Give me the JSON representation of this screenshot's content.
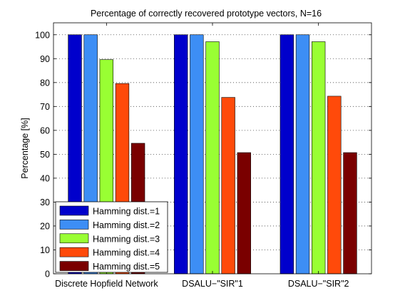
{
  "chart_data": {
    "type": "bar",
    "title": "Percentage of correctly recovered prototype vectors, N=16",
    "xlabel": "",
    "ylabel": "Percentage [%]",
    "ylim": [
      0,
      105
    ],
    "yticks": [
      0,
      10,
      20,
      30,
      40,
      50,
      60,
      70,
      80,
      90,
      100
    ],
    "grid": true,
    "legend_position": "bottom-left",
    "categories": [
      "Discrete Hopfield Network",
      "DSALU−\"SIR\"1",
      "DSALU−\"SIR\"2"
    ],
    "series": [
      {
        "name": "Hamming dist.=1",
        "color": "#0000cc",
        "values": [
          100,
          100,
          100
        ]
      },
      {
        "name": "Hamming dist.=2",
        "color": "#3d8ef5",
        "values": [
          100,
          100,
          100
        ]
      },
      {
        "name": "Hamming dist.=3",
        "color": "#99ff33",
        "values": [
          89.6,
          97.1,
          97.1
        ]
      },
      {
        "name": "Hamming dist.=4",
        "color": "#ff4a0a",
        "values": [
          79.6,
          73.8,
          74.3
        ]
      },
      {
        "name": "Hamming dist.=5",
        "color": "#7a0000",
        "values": [
          54.6,
          50.7,
          50.7
        ]
      }
    ]
  }
}
